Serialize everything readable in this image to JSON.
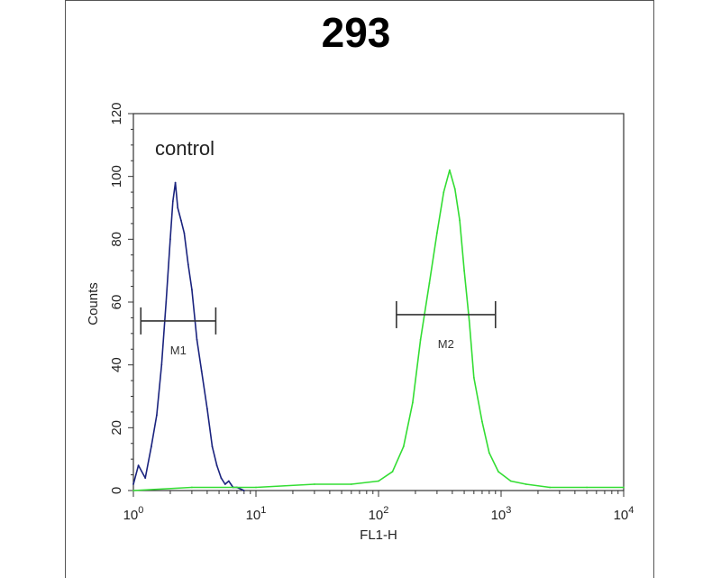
{
  "chart_data": {
    "type": "line",
    "title": "293",
    "xlabel": "FL1-H",
    "ylabel": "Counts",
    "xscale": "log",
    "xlim": [
      1,
      10000
    ],
    "ylim": [
      0,
      120
    ],
    "x_tick_labels": [
      {
        "base": "10",
        "exp": "0"
      },
      {
        "base": "10",
        "exp": "1"
      },
      {
        "base": "10",
        "exp": "2"
      },
      {
        "base": "10",
        "exp": "3"
      },
      {
        "base": "10",
        "exp": "4"
      }
    ],
    "y_ticks": [
      0,
      20,
      40,
      60,
      80,
      100,
      120
    ],
    "annotation": "control",
    "series": [
      {
        "color": "#1a237e",
        "x": [
          1.0,
          1.1,
          1.25,
          1.4,
          1.55,
          1.7,
          1.85,
          2.0,
          2.1,
          2.2,
          2.3,
          2.45,
          2.6,
          2.8,
          3.0,
          3.3,
          3.6,
          4.0,
          4.4,
          4.8,
          5.2,
          5.6,
          6.0,
          6.5,
          7.0,
          8.0
        ],
        "y": [
          2,
          8,
          4,
          14,
          24,
          40,
          60,
          80,
          92,
          98,
          90,
          86,
          82,
          72,
          64,
          48,
          38,
          26,
          14,
          8,
          4,
          2,
          3,
          1,
          1,
          0
        ]
      },
      {
        "color": "#33dd33",
        "x": [
          1,
          3,
          10,
          30,
          60,
          100,
          130,
          160,
          190,
          220,
          260,
          300,
          340,
          380,
          420,
          460,
          500,
          550,
          600,
          700,
          800,
          950,
          1200,
          1600,
          2500,
          5000,
          10000
        ],
        "y": [
          0,
          1,
          1,
          2,
          2,
          3,
          6,
          14,
          28,
          48,
          66,
          82,
          95,
          102,
          96,
          86,
          70,
          54,
          36,
          22,
          12,
          6,
          3,
          2,
          1,
          1,
          1
        ]
      }
    ],
    "markers": [
      {
        "label": "M1",
        "x_start": 1.15,
        "x_end": 4.7,
        "y": 54
      },
      {
        "label": "M2",
        "x_start": 140,
        "x_end": 900,
        "y": 56
      }
    ]
  }
}
